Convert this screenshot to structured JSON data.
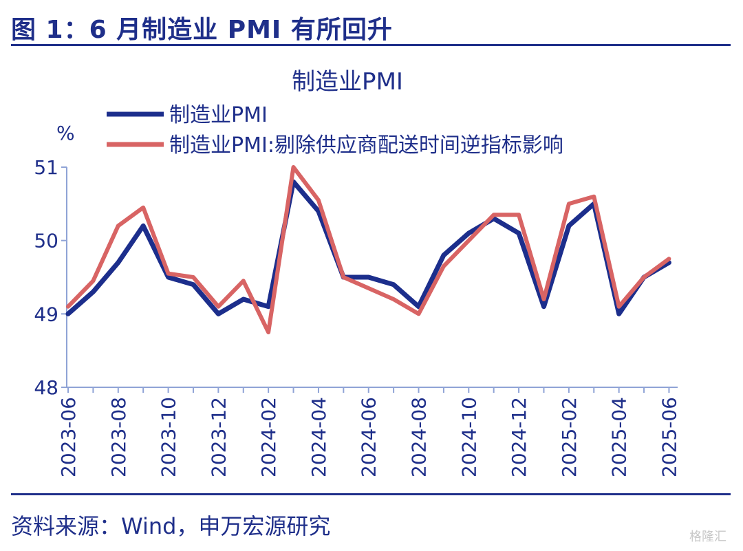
{
  "figure_title": "图 1：6 月制造业 PMI 有所回升",
  "source": "资料来源：Wind，申万宏源研究",
  "watermark": "格隆汇",
  "colors": {
    "primary": "#1f2f8a",
    "series1": "#1c2e8c",
    "series2": "#d86464"
  },
  "chart_data": {
    "type": "line",
    "title": "制造业PMI",
    "ylabel": "%",
    "ylim": [
      48,
      51
    ],
    "yticks": [
      48,
      49,
      50,
      51
    ],
    "x": [
      "2023-06",
      "2023-07",
      "2023-08",
      "2023-09",
      "2023-10",
      "2023-11",
      "2023-12",
      "2024-01",
      "2024-02",
      "2024-03",
      "2024-04",
      "2024-05",
      "2024-06",
      "2024-07",
      "2024-08",
      "2024-09",
      "2024-10",
      "2024-11",
      "2024-12",
      "2025-01",
      "2025-02",
      "2025-03",
      "2025-04",
      "2025-05",
      "2025-06"
    ],
    "xtick_labels": [
      "2023-06",
      "2023-08",
      "2023-10",
      "2023-12",
      "2024-02",
      "2024-04",
      "2024-06",
      "2024-08",
      "2024-10",
      "2024-12",
      "2025-02",
      "2025-04",
      "2025-06"
    ],
    "series": [
      {
        "name": "制造业PMI",
        "color": "#1c2e8c",
        "values": [
          49.0,
          49.3,
          49.7,
          50.2,
          49.5,
          49.4,
          49.0,
          49.2,
          49.1,
          50.8,
          50.4,
          49.5,
          49.5,
          49.4,
          49.1,
          49.8,
          50.1,
          50.3,
          50.1,
          49.1,
          50.2,
          50.5,
          49.0,
          49.5,
          49.7
        ]
      },
      {
        "name": "制造业PMI:剔除供应商配送时间逆指标影响",
        "color": "#d86464",
        "values": [
          49.1,
          49.45,
          50.2,
          50.45,
          49.55,
          49.5,
          49.1,
          49.45,
          48.75,
          51.0,
          50.55,
          49.5,
          49.35,
          49.2,
          49.0,
          49.65,
          50.0,
          50.35,
          50.35,
          49.2,
          50.5,
          50.6,
          49.1,
          49.5,
          49.75
        ]
      }
    ],
    "legend_position": "top-left",
    "grid": false
  }
}
